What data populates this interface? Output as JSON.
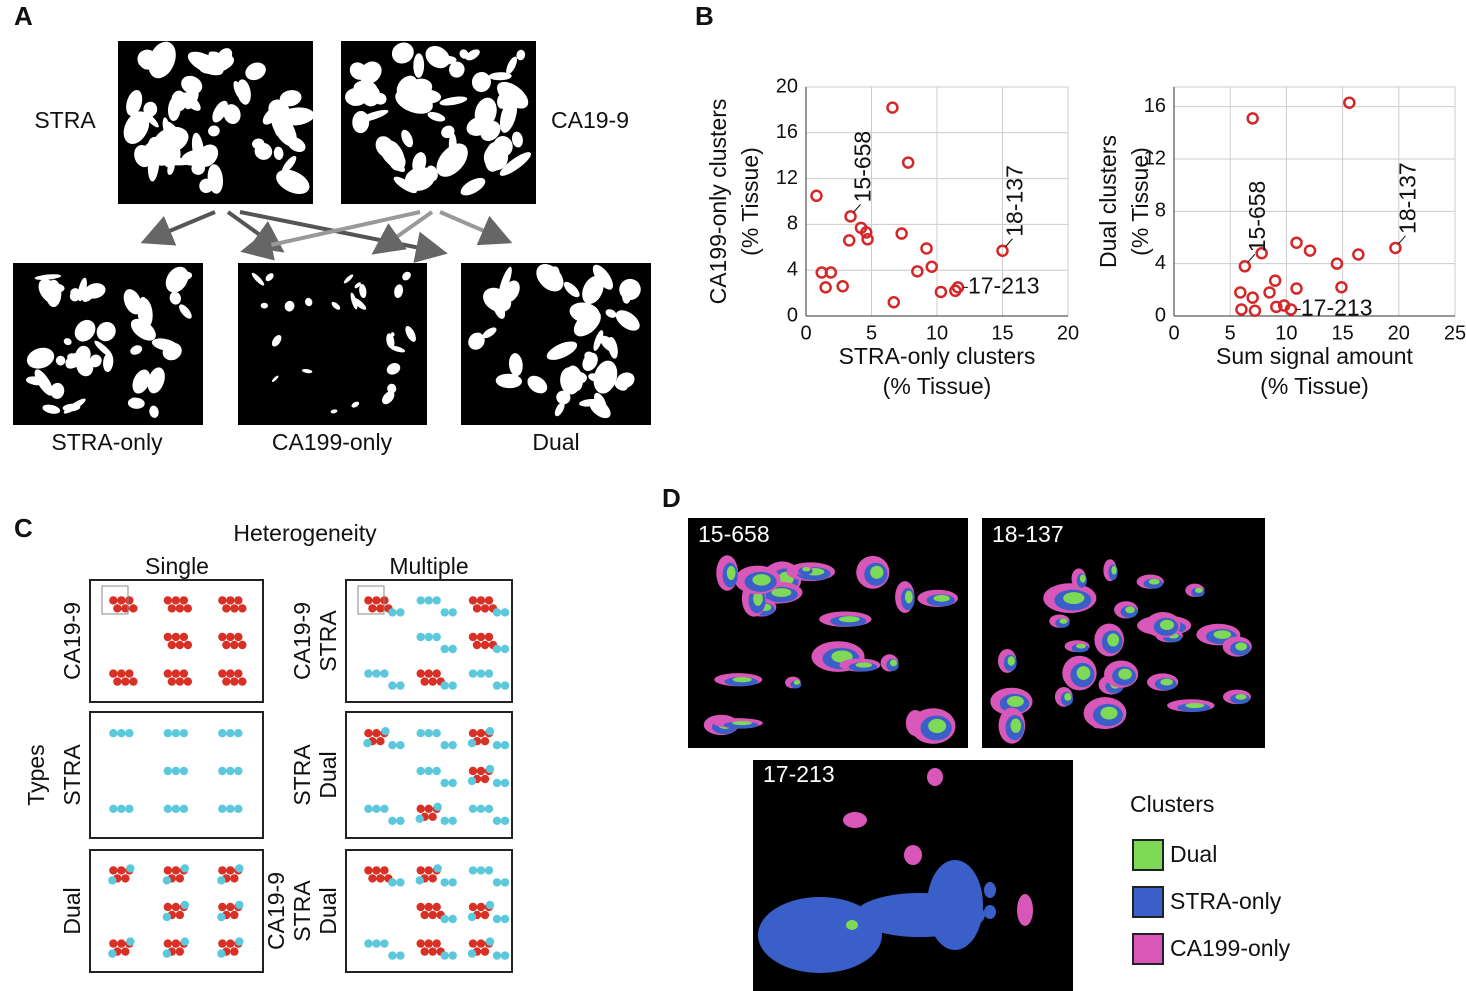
{
  "panel_letters": [
    "A",
    "B",
    "C",
    "D"
  ],
  "panel_a": {
    "top_labels": [
      "STRA",
      "CA19-9"
    ],
    "bottom_labels": [
      "STRA-only",
      "CA199-only",
      "Dual"
    ]
  },
  "chart_data": [
    {
      "type": "scatter",
      "ylabel": [
        "CA199-only clusters",
        "(% Tissue)"
      ],
      "xlabel": [
        "STRA-only clusters",
        "(% Tissue)"
      ],
      "x": [
        0.8,
        3.4,
        4.2,
        4.6,
        4.7,
        3.3,
        1.2,
        1.9,
        1.5,
        2.8,
        6.6,
        7.8,
        7.3,
        9.2,
        9.6,
        8.5,
        6.7,
        10.3,
        11.4,
        11.6,
        15.0
      ],
      "values": [
        10.5,
        8.7,
        7.7,
        7.3,
        6.7,
        6.6,
        3.8,
        3.8,
        2.5,
        2.6,
        18.2,
        13.4,
        7.2,
        5.9,
        4.3,
        3.9,
        1.2,
        2.1,
        2.2,
        2.5,
        5.7
      ],
      "color": "#d62728",
      "xlim": [
        0,
        20
      ],
      "ylim": [
        0,
        20
      ],
      "xticks": [
        0,
        5,
        10,
        15,
        20
      ],
      "yticks": [
        0,
        4,
        8,
        12,
        16,
        20
      ],
      "grid": true,
      "annotations": [
        {
          "text": "15-658",
          "x": 3.4,
          "y": 8.7,
          "orientation": "vertical"
        },
        {
          "text": "17-213",
          "x": 11.6,
          "y": 2.5,
          "orientation": "horizontal"
        },
        {
          "text": "18-137",
          "x": 15.0,
          "y": 5.7,
          "orientation": "vertical"
        }
      ]
    },
    {
      "type": "scatter",
      "ylabel": [
        "Dual clusters",
        "(% Tissue)"
      ],
      "xlabel": [
        "Sum signal amount",
        "(% Tissue)"
      ],
      "x": [
        7.0,
        15.6,
        6.3,
        7.8,
        5.9,
        7.0,
        6.0,
        7.2,
        9.0,
        8.5,
        9.1,
        9.8,
        10.4,
        10.9,
        10.9,
        12.1,
        14.5,
        14.9,
        16.4,
        19.7
      ],
      "values": [
        15.1,
        16.3,
        3.8,
        4.8,
        1.8,
        1.4,
        0.5,
        0.4,
        2.7,
        1.8,
        0.7,
        0.8,
        0.5,
        2.1,
        5.6,
        5.0,
        4.0,
        2.2,
        4.7,
        5.2
      ],
      "color": "#d62728",
      "xlim": [
        0,
        25
      ],
      "ylim": [
        0,
        17.5
      ],
      "xticks": [
        0,
        5,
        10,
        15,
        20,
        25
      ],
      "yticks": [
        0,
        4,
        8,
        12,
        16
      ],
      "grid": true,
      "annotations": [
        {
          "text": "15-658",
          "x": 6.3,
          "y": 3.8,
          "orientation": "vertical"
        },
        {
          "text": "17-213",
          "x": 10.4,
          "y": 0.5,
          "orientation": "horizontal"
        },
        {
          "text": "18-137",
          "x": 19.7,
          "y": 5.2,
          "orientation": "vertical"
        }
      ]
    }
  ],
  "panel_c": {
    "title": "Heterogeneity",
    "columns": [
      "Single",
      "Multiple"
    ],
    "row_axis": "Types",
    "single_rows": [
      [
        "CA19-9"
      ],
      [
        "STRA"
      ],
      [
        "Dual"
      ]
    ],
    "multiple_rows": [
      [
        "CA19-9",
        "STRA"
      ],
      [
        "STRA",
        "Dual"
      ],
      [
        "CA19-9",
        "STRA",
        "Dual"
      ]
    ]
  },
  "panel_d": {
    "images": [
      "15-658",
      "18-137",
      "17-213"
    ],
    "legend_title": "Clusters",
    "legend": [
      {
        "name": "Dual",
        "color": "#7ed957"
      },
      {
        "name": "STRA-only",
        "color": "#3a5fc8"
      },
      {
        "name": "CA199-only",
        "color": "#d957b8"
      }
    ]
  }
}
